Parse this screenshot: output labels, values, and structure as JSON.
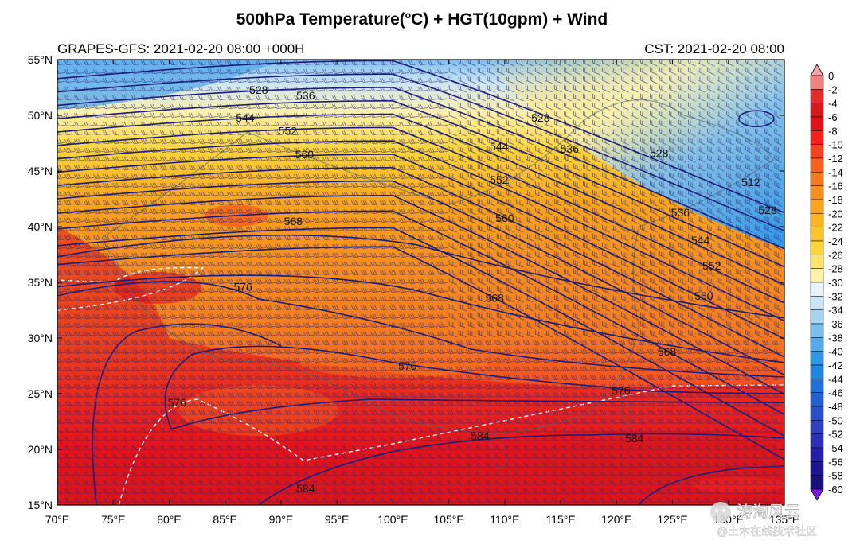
{
  "title": {
    "main": "500hPa Temperature(",
    "deg": "o",
    "rest": "C) + HGT(10gpm) + Wind"
  },
  "subtitle": {
    "left": "GRAPES-GFS: 2021-02-20 08:00 +000H",
    "right": "CST: 2021-02-20 08:00"
  },
  "map": {
    "lat_labels": [
      "55°N",
      "50°N",
      "45°N",
      "40°N",
      "35°N",
      "30°N",
      "25°N",
      "20°N",
      "15°N"
    ],
    "lon_labels": [
      "70°E",
      "75°E",
      "80°E",
      "85°E",
      "90°E",
      "95°E",
      "100°E",
      "105°E",
      "110°E",
      "115°E",
      "120°E",
      "125°E",
      "130°E",
      "135°E"
    ],
    "contour_labels": [
      {
        "text": "528",
        "lon": 88,
        "lat": 52.3
      },
      {
        "text": "536",
        "lon": 92.2,
        "lat": 51.8
      },
      {
        "text": "544",
        "lon": 86.8,
        "lat": 49.8
      },
      {
        "text": "552",
        "lon": 90.6,
        "lat": 48.6
      },
      {
        "text": "560",
        "lon": 92.1,
        "lat": 46.5
      },
      {
        "text": "568",
        "lon": 91.1,
        "lat": 40.5
      },
      {
        "text": "576",
        "lon": 86.6,
        "lat": 34.6
      },
      {
        "text": "576",
        "lon": 80.7,
        "lat": 24.2
      },
      {
        "text": "576",
        "lon": 101.3,
        "lat": 27.5
      },
      {
        "text": "576",
        "lon": 120.4,
        "lat": 25.3
      },
      {
        "text": "584",
        "lon": 107.8,
        "lat": 21.2
      },
      {
        "text": "584",
        "lon": 121.6,
        "lat": 21.0
      },
      {
        "text": "584",
        "lon": 92.2,
        "lat": 16.5
      },
      {
        "text": "528",
        "lon": 113.2,
        "lat": 49.8
      },
      {
        "text": "536",
        "lon": 115.8,
        "lat": 47.0
      },
      {
        "text": "544",
        "lon": 109.5,
        "lat": 47.2
      },
      {
        "text": "552",
        "lon": 109.5,
        "lat": 44.2
      },
      {
        "text": "560",
        "lon": 110.0,
        "lat": 40.8
      },
      {
        "text": "568",
        "lon": 109.1,
        "lat": 33.6
      },
      {
        "text": "528",
        "lon": 123.8,
        "lat": 46.6
      },
      {
        "text": "536",
        "lon": 125.7,
        "lat": 41.3
      },
      {
        "text": "544",
        "lon": 127.5,
        "lat": 38.8
      },
      {
        "text": "552",
        "lon": 128.5,
        "lat": 36.5
      },
      {
        "text": "560",
        "lon": 127.8,
        "lat": 33.8
      },
      {
        "text": "568",
        "lon": 124.5,
        "lat": 28.8
      },
      {
        "text": "528",
        "lon": 133.5,
        "lat": 41.5
      },
      {
        "text": "512",
        "lon": 132.0,
        "lat": 44.0
      }
    ]
  },
  "colorbar": {
    "labels": [
      "0",
      "-2",
      "-4",
      "-6",
      "-8",
      "-10",
      "-12",
      "-14",
      "-16",
      "-18",
      "-20",
      "-22",
      "-24",
      "-26",
      "-28",
      "-30",
      "-32",
      "-34",
      "-36",
      "-38",
      "-40",
      "-42",
      "-44",
      "-46",
      "-48",
      "-50",
      "-52",
      "-54",
      "-56",
      "-58",
      "-60"
    ],
    "colors": [
      "#f08080",
      "#e52d2d",
      "#d41a1a",
      "#e0131b",
      "#f0221b",
      "#f4431f",
      "#f46020",
      "#f47a1f",
      "#f58f1f",
      "#f9a41c",
      "#fbb41f",
      "#fbc42d",
      "#fcd53a",
      "#fde36b",
      "#fdf1a8",
      "#e7f3fa",
      "#c9e4f6",
      "#a7d2f1",
      "#7ebeed",
      "#55aaea",
      "#2f97e6",
      "#1d86df",
      "#1f73d6",
      "#2461cf",
      "#2a50c8",
      "#2e41bf",
      "#2a2fb3",
      "#2520a5",
      "#1d1594",
      "#19107e"
    ],
    "tip_top": "#f4a6a6",
    "tip_bottom": "#7a18e0"
  },
  "watermark": {
    "account": "涛淘风云",
    "sub": "@土木在线技术社区"
  },
  "colors": {
    "contour": "#1b1b7a",
    "barb": "#2a2a80",
    "dashed_isotherm": "#ffffff"
  }
}
